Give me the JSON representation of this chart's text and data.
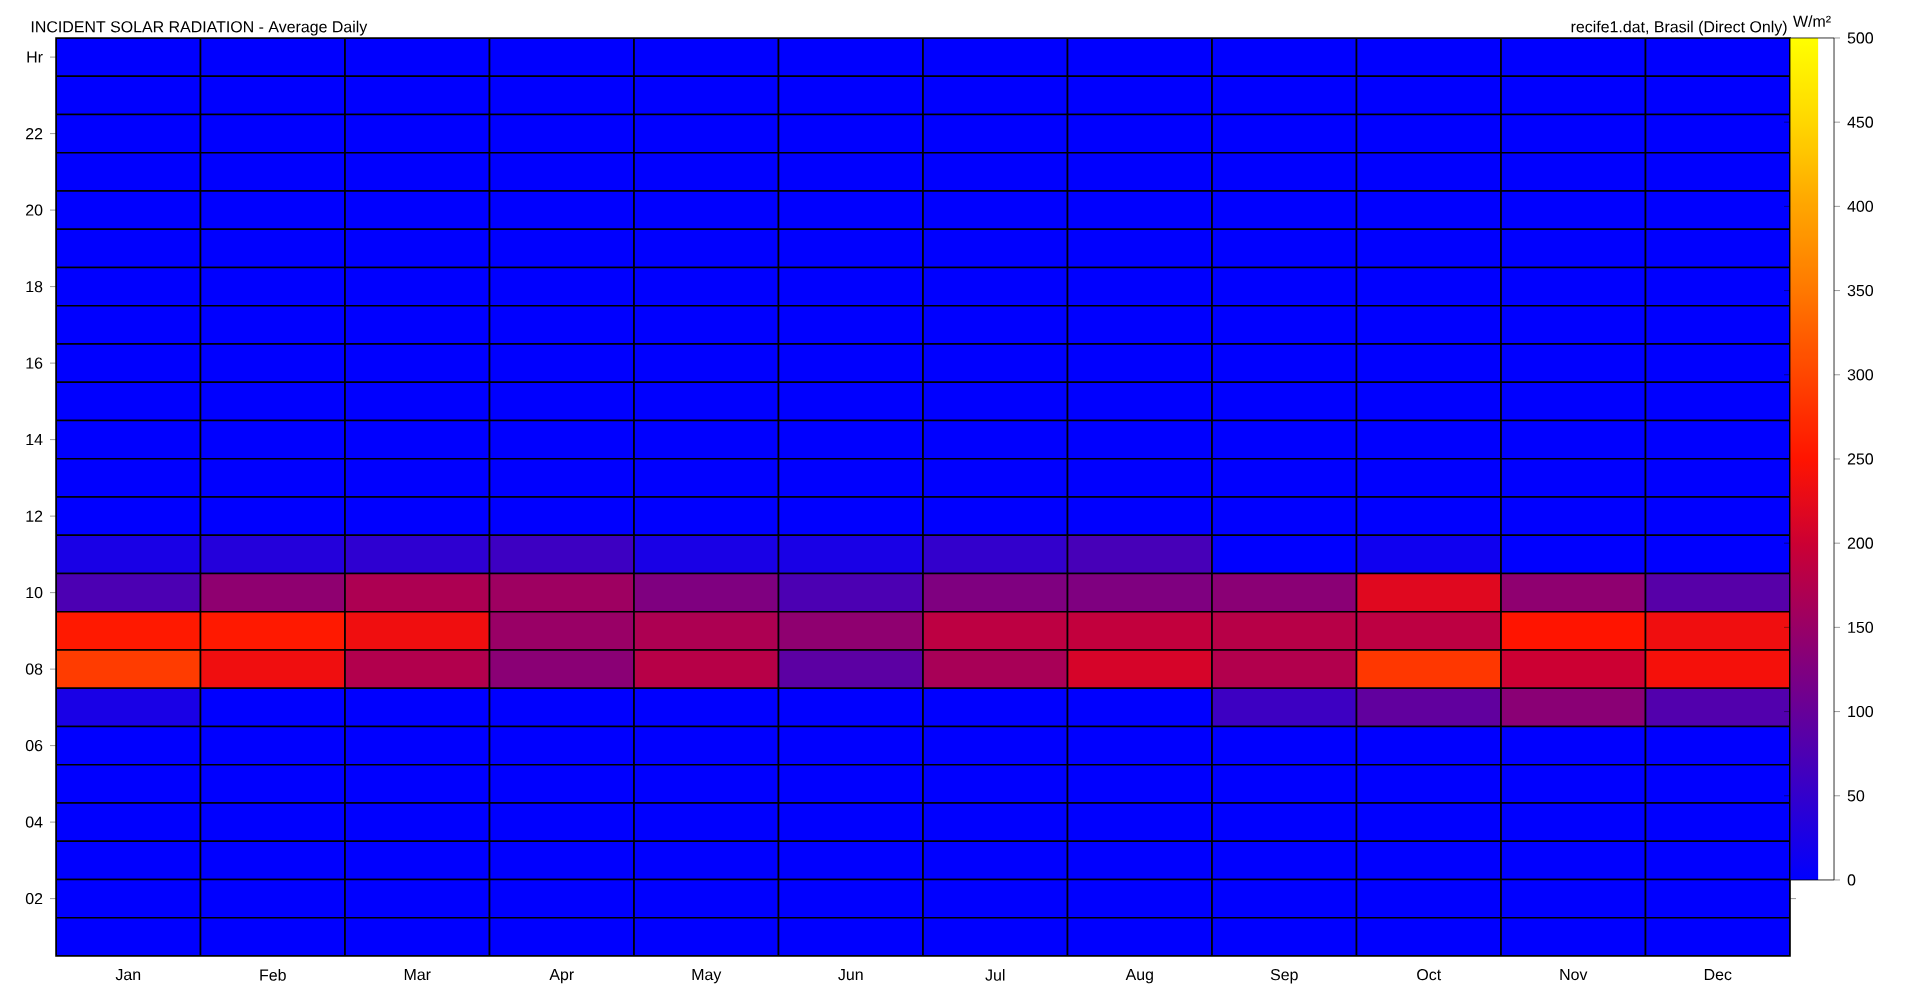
{
  "chart_data": {
    "type": "heatmap",
    "title": "INCIDENT SOLAR RADIATION - Average Daily",
    "annotations": [
      "recife1.dat, Brasil (Direct Only)"
    ],
    "clabel": "W/m²",
    "categories": [
      "Jan",
      "Feb",
      "Mar",
      "Apr",
      "May",
      "Jun",
      "Jul",
      "Aug",
      "Sep",
      "Oct",
      "Nov",
      "Dec"
    ],
    "y_categories": [
      "Hr",
      null,
      "22",
      null,
      "20",
      null,
      "18",
      null,
      "16",
      null,
      "14",
      null,
      "12",
      null,
      "10",
      null,
      "08",
      null,
      "06",
      null,
      "04",
      null,
      "02",
      null
    ],
    "cells": [
      [
        0,
        0,
        0,
        0,
        0,
        0,
        0,
        0,
        0,
        0,
        0,
        0
      ],
      [
        0,
        0,
        0,
        0,
        0,
        0,
        0,
        0,
        0,
        0,
        0,
        0
      ],
      [
        0,
        0,
        0,
        0,
        0,
        0,
        0,
        0,
        0,
        0,
        0,
        0
      ],
      [
        0,
        0,
        0,
        0,
        0,
        0,
        0,
        0,
        0,
        0,
        0,
        0
      ],
      [
        0,
        0,
        0,
        0,
        0,
        0,
        0,
        0,
        0,
        0,
        0,
        0
      ],
      [
        0,
        0,
        0,
        0,
        0,
        0,
        0,
        0,
        0,
        0,
        0,
        0
      ],
      [
        0,
        0,
        0,
        0,
        0,
        0,
        0,
        0,
        0,
        0,
        0,
        0
      ],
      [
        0,
        0,
        0,
        0,
        0,
        0,
        0,
        0,
        0,
        0,
        0,
        0
      ],
      [
        0,
        0,
        0,
        0,
        0,
        0,
        0,
        0,
        0,
        0,
        0,
        0
      ],
      [
        0,
        0,
        0,
        0,
        0,
        0,
        0,
        0,
        0,
        0,
        0,
        0
      ],
      [
        0,
        0,
        0,
        0,
        0,
        0,
        0,
        0,
        0,
        0,
        0,
        0
      ],
      [
        0,
        0,
        0,
        0,
        0,
        0,
        0,
        0,
        0,
        0,
        0,
        0
      ],
      [
        0,
        0,
        0,
        0,
        0,
        0,
        0,
        0,
        0,
        0,
        0,
        0
      ],
      [
        25,
        35,
        45,
        60,
        25,
        25,
        50,
        70,
        0,
        15,
        0,
        0
      ],
      [
        75,
        140,
        170,
        155,
        125,
        75,
        125,
        125,
        135,
        220,
        140,
        85
      ],
      [
        255,
        255,
        235,
        150,
        170,
        140,
        185,
        190,
        180,
        185,
        250,
        235
      ],
      [
        290,
        235,
        175,
        135,
        180,
        90,
        165,
        210,
        175,
        285,
        200,
        240
      ],
      [
        25,
        0,
        0,
        0,
        0,
        0,
        0,
        0,
        60,
        95,
        135,
        80
      ],
      [
        0,
        0,
        0,
        0,
        0,
        0,
        0,
        0,
        0,
        0,
        0,
        0
      ],
      [
        0,
        0,
        0,
        0,
        0,
        0,
        0,
        0,
        0,
        0,
        0,
        0
      ],
      [
        0,
        0,
        0,
        0,
        0,
        0,
        0,
        0,
        0,
        0,
        0,
        0
      ],
      [
        0,
        0,
        0,
        0,
        0,
        0,
        0,
        0,
        0,
        0,
        0,
        0
      ],
      [
        0,
        0,
        0,
        0,
        0,
        0,
        0,
        0,
        0,
        0,
        0,
        0
      ],
      [
        0,
        0,
        0,
        0,
        0,
        0,
        0,
        0,
        0,
        0,
        0,
        0
      ]
    ],
    "clim": [
      0,
      500
    ],
    "cticks": [
      0,
      50,
      100,
      150,
      200,
      250,
      300,
      350,
      400,
      450,
      500
    ]
  }
}
